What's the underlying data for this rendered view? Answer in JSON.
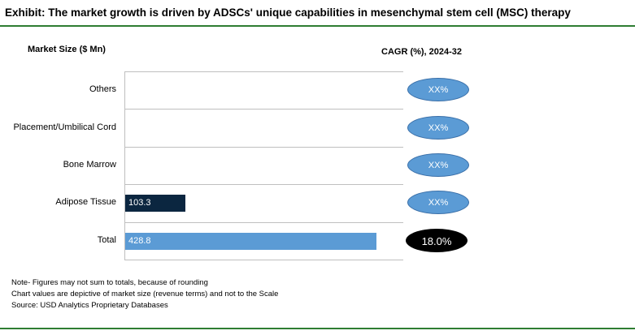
{
  "title": "Exhibit: The market growth is driven by ADSCs' unique capabilities in mesenchymal stem cell (MSC) therapy",
  "header_left": "Market Size ($ Mn)",
  "header_right": "CAGR (%), 2024-32",
  "colors": {
    "total": "#5b9bd5",
    "segment": "#0b2640",
    "cagr_blue": "#5b9bd5",
    "cagr_total": "#000000",
    "rule": "#2e7d32"
  },
  "chart_data": {
    "type": "bar",
    "orientation": "horizontal",
    "categories": [
      "Others",
      "Placement/Umbilical Cord",
      "Bone Marrow",
      "Adipose Tissue",
      "Total"
    ],
    "values": [
      null,
      null,
      null,
      103.3,
      428.8
    ],
    "value_labels": [
      "",
      "",
      "",
      "103.3",
      "428.8"
    ],
    "cagr": [
      "XX%",
      "XX%",
      "XX%",
      "XX%",
      "18.0%"
    ],
    "grid": true
  },
  "notes": [
    "Note- Figures may not sum to totals, because of rounding",
    "Chart values are depictive of market size (revenue terms) and not to the Scale",
    "Source: USD Analytics Proprietary Databases"
  ]
}
